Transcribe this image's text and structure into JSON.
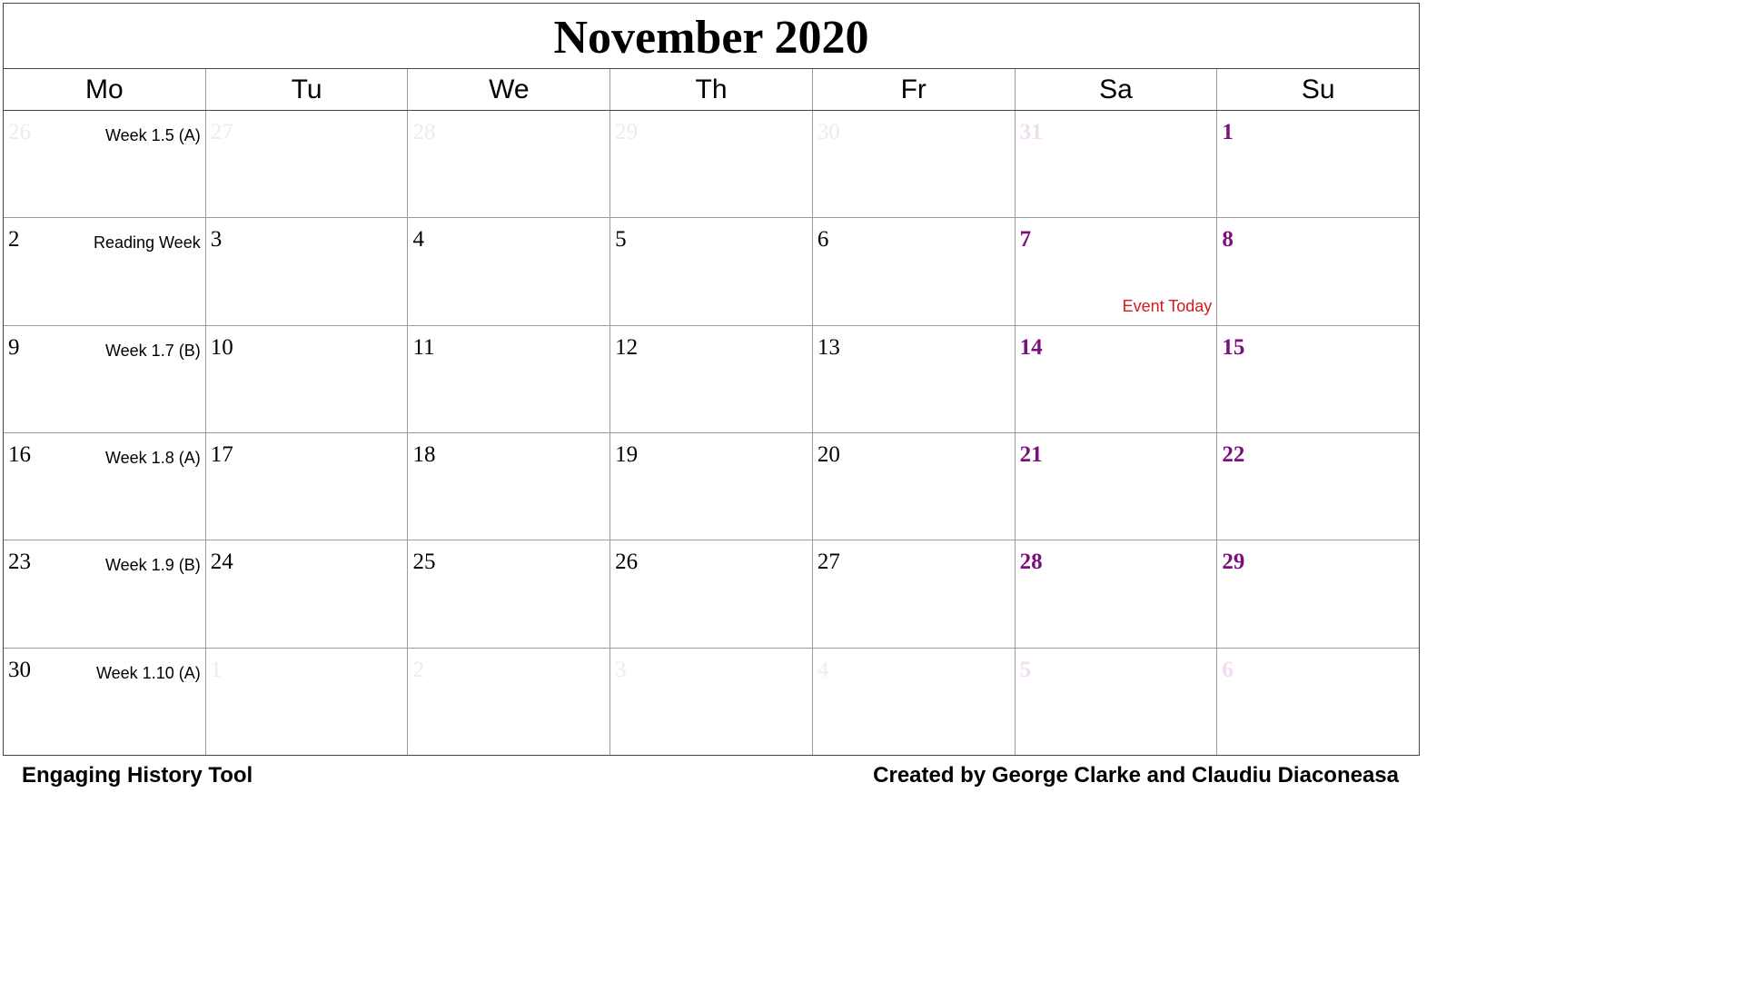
{
  "calendar": {
    "title": "November 2020",
    "colors": {
      "current_day": "#000000",
      "other_month_day": "#ececec",
      "weekend_day": "#7b0f7b",
      "other_month_weekend_day": "#f2dcf2",
      "event": "#d41a1a"
    },
    "weekdays": [
      "Mo",
      "Tu",
      "We",
      "Th",
      "Fr",
      "Sa",
      "Su"
    ],
    "weeks": [
      {
        "label": "Week 1.5 (A)",
        "days": [
          {
            "num": "26",
            "other": true
          },
          {
            "num": "27",
            "other": true
          },
          {
            "num": "28",
            "other": true
          },
          {
            "num": "29",
            "other": true
          },
          {
            "num": "30",
            "other": true
          },
          {
            "num": "31",
            "other": true,
            "weekend": true
          },
          {
            "num": "1",
            "weekend": true
          }
        ]
      },
      {
        "label": "Reading Week",
        "days": [
          {
            "num": "2"
          },
          {
            "num": "3"
          },
          {
            "num": "4"
          },
          {
            "num": "5"
          },
          {
            "num": "6"
          },
          {
            "num": "7",
            "weekend": true,
            "event": "Event Today"
          },
          {
            "num": "8",
            "weekend": true
          }
        ]
      },
      {
        "label": "Week 1.7 (B)",
        "days": [
          {
            "num": "9"
          },
          {
            "num": "10"
          },
          {
            "num": "11"
          },
          {
            "num": "12"
          },
          {
            "num": "13"
          },
          {
            "num": "14",
            "weekend": true
          },
          {
            "num": "15",
            "weekend": true
          }
        ]
      },
      {
        "label": "Week 1.8 (A)",
        "days": [
          {
            "num": "16"
          },
          {
            "num": "17"
          },
          {
            "num": "18"
          },
          {
            "num": "19"
          },
          {
            "num": "20"
          },
          {
            "num": "21",
            "weekend": true
          },
          {
            "num": "22",
            "weekend": true
          }
        ]
      },
      {
        "label": "Week 1.9 (B)",
        "days": [
          {
            "num": "23"
          },
          {
            "num": "24"
          },
          {
            "num": "25"
          },
          {
            "num": "26"
          },
          {
            "num": "27"
          },
          {
            "num": "28",
            "weekend": true
          },
          {
            "num": "29",
            "weekend": true
          }
        ]
      },
      {
        "label": "Week 1.10 (A)",
        "days": [
          {
            "num": "30"
          },
          {
            "num": "1",
            "other": true
          },
          {
            "num": "2",
            "other": true
          },
          {
            "num": "3",
            "other": true
          },
          {
            "num": "4",
            "other": true
          },
          {
            "num": "5",
            "other": true,
            "weekend": true
          },
          {
            "num": "6",
            "other": true,
            "weekend": true
          }
        ]
      }
    ]
  },
  "footer": {
    "left": "Engaging History Tool",
    "right": "Created by George Clarke and Claudiu Diaconeasa"
  }
}
